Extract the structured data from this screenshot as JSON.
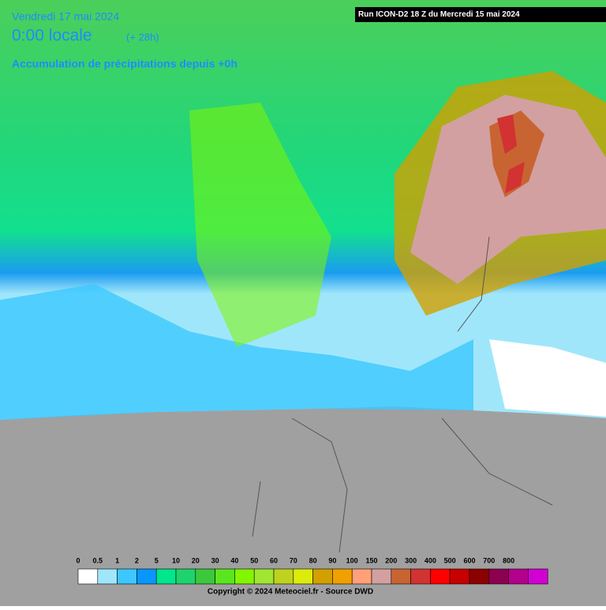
{
  "header": {
    "date": "Vendredi 17 mai 2024",
    "time": "0:00 locale",
    "offset": "(+ 28h)",
    "subtitle": "Accumulation de précipitations depuis +0h",
    "run": "Run ICON-D2 18 Z du Mercredi 15 mai 2024"
  },
  "legend": {
    "items": [
      {
        "label": "0",
        "color": "#ffffff"
      },
      {
        "label": "0.5",
        "color": "#a0e6fa"
      },
      {
        "label": "1",
        "color": "#3cc8ff"
      },
      {
        "label": "2",
        "color": "#0a96ff"
      },
      {
        "label": "5",
        "color": "#00e68c"
      },
      {
        "label": "10",
        "color": "#1ed26e"
      },
      {
        "label": "20",
        "color": "#3cc83c"
      },
      {
        "label": "30",
        "color": "#5ae61e"
      },
      {
        "label": "40",
        "color": "#82f500"
      },
      {
        "label": "50",
        "color": "#a0e632"
      },
      {
        "label": "60",
        "color": "#bed21e"
      },
      {
        "label": "70",
        "color": "#dcec0a"
      },
      {
        "label": "80",
        "color": "#d2a000"
      },
      {
        "label": "90",
        "color": "#f0a000"
      },
      {
        "label": "100",
        "color": "#ffa078"
      },
      {
        "label": "150",
        "color": "#d2a0a0"
      },
      {
        "label": "200",
        "color": "#c86432"
      },
      {
        "label": "300",
        "color": "#d23232"
      },
      {
        "label": "400",
        "color": "#ff0000"
      },
      {
        "label": "500",
        "color": "#c80000"
      },
      {
        "label": "600",
        "color": "#8c0000"
      },
      {
        "label": "700",
        "color": "#8c0050"
      },
      {
        "label": "800",
        "color": "#b4008c"
      }
    ],
    "last_color": "#d200d2"
  },
  "footer": {
    "copyright": "Copyright © 2024 Meteociel.fr - Source DWD"
  }
}
